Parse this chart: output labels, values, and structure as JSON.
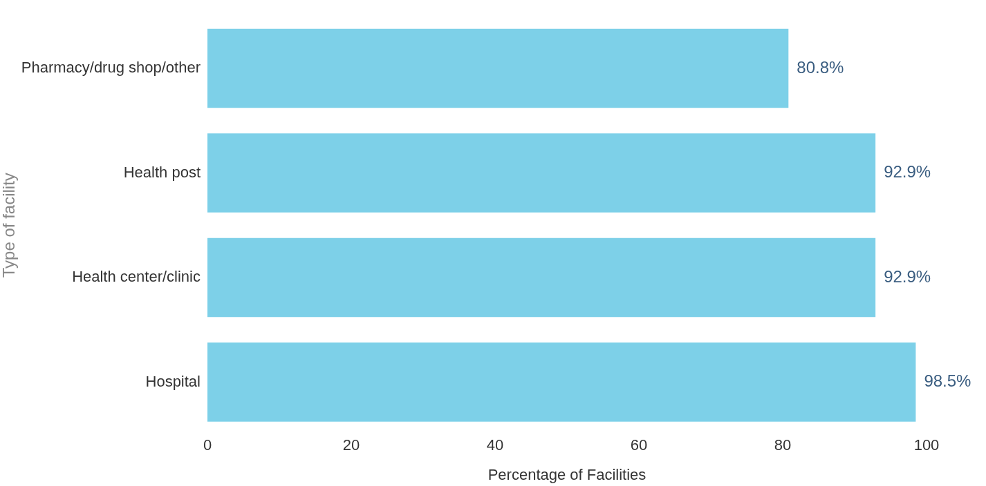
{
  "chart_data": {
    "type": "bar",
    "orientation": "horizontal",
    "categories": [
      "Pharmacy/drug shop/other",
      "Health post",
      "Health center/clinic",
      "Hospital"
    ],
    "values": [
      80.8,
      92.9,
      92.9,
      98.5
    ],
    "value_labels": [
      "80.8%",
      "92.9%",
      "92.9%",
      "98.5%"
    ],
    "color": "#7dd0e8",
    "xlabel": "Percentage of Facilities",
    "ylabel": "Type of facility",
    "xlim": [
      0,
      100
    ],
    "xticks": [
      0,
      20,
      40,
      60,
      80,
      100
    ]
  }
}
